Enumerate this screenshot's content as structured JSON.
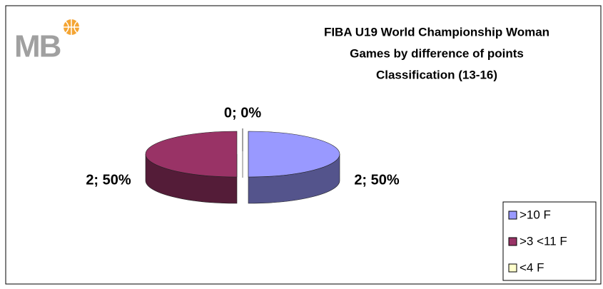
{
  "logo": "MB",
  "chart_data": {
    "type": "pie",
    "three_d": true,
    "title": [
      "FIBA U19 World Championship Woman",
      "Games by difference of points",
      "Classification (13-16)"
    ],
    "categories": [
      ">10 F",
      ">3 <11 F",
      "<4 F"
    ],
    "values": [
      2,
      2,
      0
    ],
    "value_labels": [
      "2; 50%",
      "2; 50%",
      "0; 0%"
    ],
    "colors": [
      "#9999ff",
      "#993366",
      "#ffffcc"
    ],
    "legend": "bottom-right"
  }
}
